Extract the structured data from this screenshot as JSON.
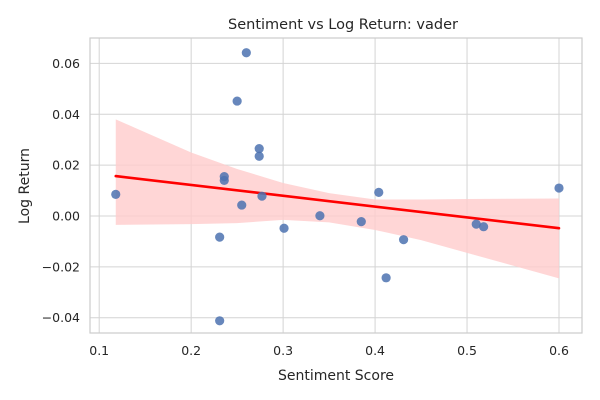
{
  "chart_data": {
    "type": "scatter",
    "title": "Sentiment vs Log Return: vader",
    "xlabel": "Sentiment Score",
    "ylabel": "Log Return",
    "xlim": [
      0.09,
      0.625
    ],
    "ylim": [
      -0.046,
      0.07
    ],
    "x_ticks": [
      0.1,
      0.2,
      0.3,
      0.4,
      0.5,
      0.6
    ],
    "x_tick_labels": [
      "0.1",
      "0.2",
      "0.3",
      "0.4",
      "0.5",
      "0.6"
    ],
    "y_ticks": [
      -0.04,
      -0.02,
      0.0,
      0.02,
      0.04,
      0.06
    ],
    "y_tick_labels": [
      "−0.04",
      "−0.02",
      "0.00",
      "0.02",
      "0.04",
      "0.06"
    ],
    "grid": true,
    "point_color": "#4c72b0",
    "line_color": "#ff0000",
    "band_color": "#ffcccc",
    "points": [
      {
        "x": 0.118,
        "y": 0.0085
      },
      {
        "x": 0.231,
        "y": -0.0083
      },
      {
        "x": 0.231,
        "y": -0.0412
      },
      {
        "x": 0.236,
        "y": 0.0155
      },
      {
        "x": 0.236,
        "y": 0.014
      },
      {
        "x": 0.25,
        "y": 0.0452
      },
      {
        "x": 0.255,
        "y": 0.0043
      },
      {
        "x": 0.26,
        "y": 0.0642
      },
      {
        "x": 0.274,
        "y": 0.0265
      },
      {
        "x": 0.274,
        "y": 0.0235
      },
      {
        "x": 0.277,
        "y": 0.0078
      },
      {
        "x": 0.301,
        "y": -0.0048
      },
      {
        "x": 0.34,
        "y": 0.0001
      },
      {
        "x": 0.385,
        "y": -0.0022
      },
      {
        "x": 0.404,
        "y": 0.0093
      },
      {
        "x": 0.412,
        "y": -0.0243
      },
      {
        "x": 0.431,
        "y": -0.0093
      },
      {
        "x": 0.51,
        "y": -0.0032
      },
      {
        "x": 0.518,
        "y": -0.0042
      },
      {
        "x": 0.6,
        "y": 0.011
      }
    ],
    "regression": {
      "x_start": 0.118,
      "y_start": 0.0157,
      "x_end": 0.6,
      "y_end": -0.0048
    },
    "confidence_band": {
      "x": [
        0.118,
        0.2,
        0.25,
        0.3,
        0.35,
        0.4,
        0.45,
        0.5,
        0.55,
        0.6
      ],
      "upper": [
        0.038,
        0.025,
        0.0185,
        0.013,
        0.009,
        0.0065,
        0.0065,
        0.0067,
        0.0068,
        0.0069
      ],
      "lower": [
        -0.0035,
        -0.0032,
        -0.0028,
        -0.0015,
        -0.0025,
        -0.0055,
        -0.0095,
        -0.0145,
        -0.0195,
        -0.0245
      ]
    }
  }
}
